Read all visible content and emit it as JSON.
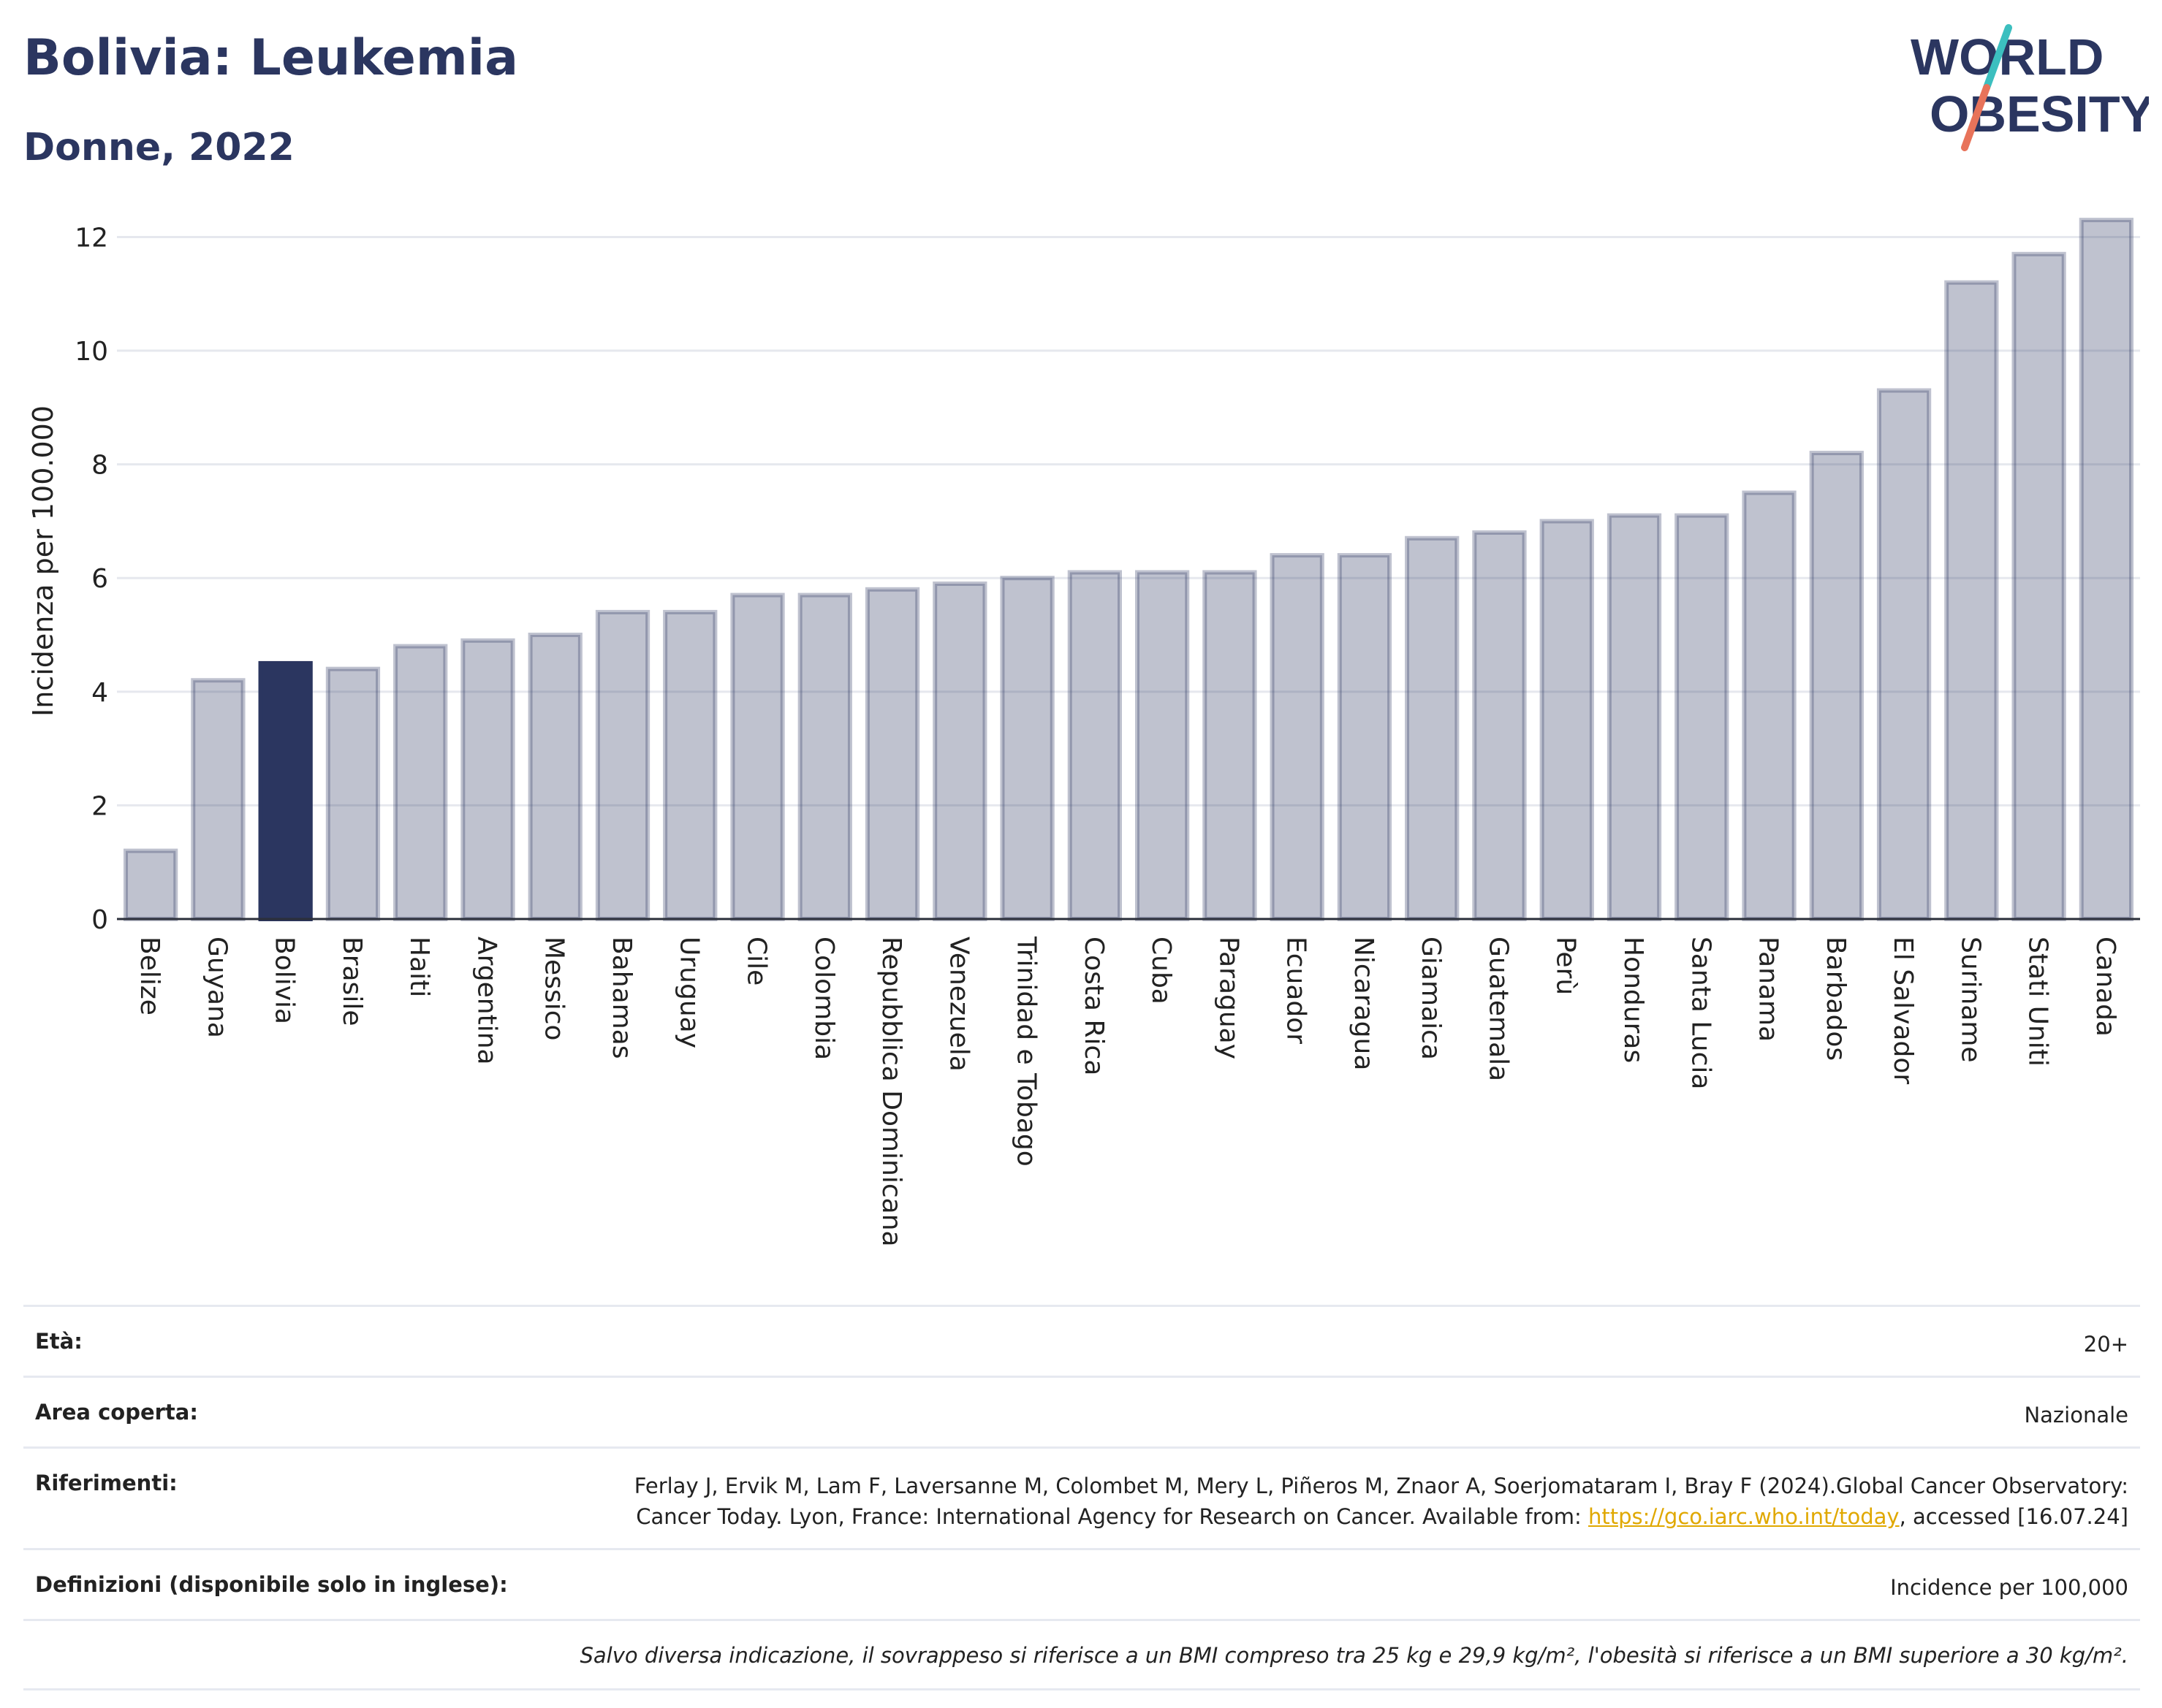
{
  "header": {
    "title": "Bolivia: Leukemia",
    "subtitle": "Donne, 2022"
  },
  "logo": {
    "line1": "WORLD",
    "line2": "OBESITY",
    "text_color": "#2b3660",
    "slash_colors": [
      "#3cbfbf",
      "#e8735a"
    ]
  },
  "chart_data": {
    "type": "bar",
    "title": "Bolivia: Leukemia",
    "subtitle": "Donne, 2022",
    "xlabel": "",
    "ylabel": "Incidenza per 100.000",
    "ylim": [
      0,
      12.7
    ],
    "yticks": [
      0,
      2,
      4,
      6,
      8,
      10,
      12
    ],
    "grid": true,
    "highlight": "Bolivia",
    "colors": {
      "default": "#2b3660",
      "highlight": "#2b3660"
    },
    "categories": [
      "Belize",
      "Guyana",
      "Bolivia",
      "Brasile",
      "Haiti",
      "Argentina",
      "Messico",
      "Bahamas",
      "Uruguay",
      "Cile",
      "Colombia",
      "Repubblica Dominicana",
      "Venezuela",
      "Trinidad e Tobago",
      "Costa Rica",
      "Cuba",
      "Paraguay",
      "Ecuador",
      "Nicaragua",
      "Giamaica",
      "Guatemala",
      "Perù",
      "Honduras",
      "Santa Lucia",
      "Panama",
      "Barbados",
      "El Salvador",
      "Suriname",
      "Stati Uniti",
      "Canada"
    ],
    "values": [
      1.2,
      4.2,
      4.5,
      4.4,
      4.8,
      4.9,
      5.0,
      5.4,
      5.4,
      5.7,
      5.7,
      5.8,
      5.9,
      6.0,
      6.1,
      6.1,
      6.1,
      6.4,
      6.4,
      6.7,
      6.8,
      7.0,
      7.1,
      7.1,
      7.5,
      8.2,
      9.3,
      11.2,
      11.7,
      12.3
    ]
  },
  "info": {
    "age_label": "Età:",
    "age_value": "20+",
    "area_label": "Area coperta:",
    "area_value": "Nazionale",
    "ref_label": "Riferimenti:",
    "ref_text_1": "Ferlay J, Ervik M, Lam F, Laversanne M, Colombet M, Mery L, Piñeros M, Znaor A, Soerjomataram I, Bray F (2024).Global Cancer Observatory: Cancer Today. Lyon, France: International Agency for Research on Cancer. Available from: ",
    "ref_link": "https://gco.iarc.who.int/today",
    "ref_text_2": ", accessed [16.07.24]",
    "def_label": "Definizioni (disponibile solo in inglese):",
    "def_value": "Incidence per 100,000",
    "note": "Salvo diversa indicazione, il sovrappeso si riferisce a un BMI compreso tra 25 kg e 29,9 kg/m², l'obesità si riferisce a un BMI superiore a 30 kg/m²."
  }
}
